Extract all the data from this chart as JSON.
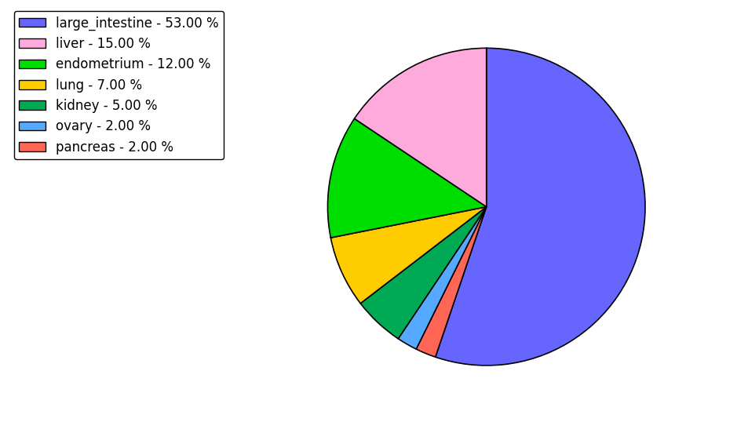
{
  "labels": [
    "large_intestine",
    "pancreas",
    "ovary",
    "kidney",
    "lung",
    "endometrium",
    "liver"
  ],
  "values": [
    53.0,
    2.0,
    2.0,
    5.0,
    7.0,
    12.0,
    15.0
  ],
  "colors": [
    "#6666ff",
    "#ff6655",
    "#55aaff",
    "#00aa55",
    "#ffcc00",
    "#00dd00",
    "#ffaadd"
  ],
  "legend_labels": [
    "large_intestine - 53.00 %",
    "liver - 15.00 %",
    "endometrium - 12.00 %",
    "lung - 7.00 %",
    "kidney - 5.00 %",
    "ovary - 2.00 %",
    "pancreas - 2.00 %"
  ],
  "legend_colors": [
    "#6666ff",
    "#ffaadd",
    "#00dd00",
    "#ffcc00",
    "#00aa55",
    "#55aaff",
    "#ff6655"
  ],
  "figsize": [
    9.39,
    5.38
  ],
  "dpi": 100,
  "background_color": "#ffffff",
  "startangle": 90,
  "legend_fontsize": 12
}
